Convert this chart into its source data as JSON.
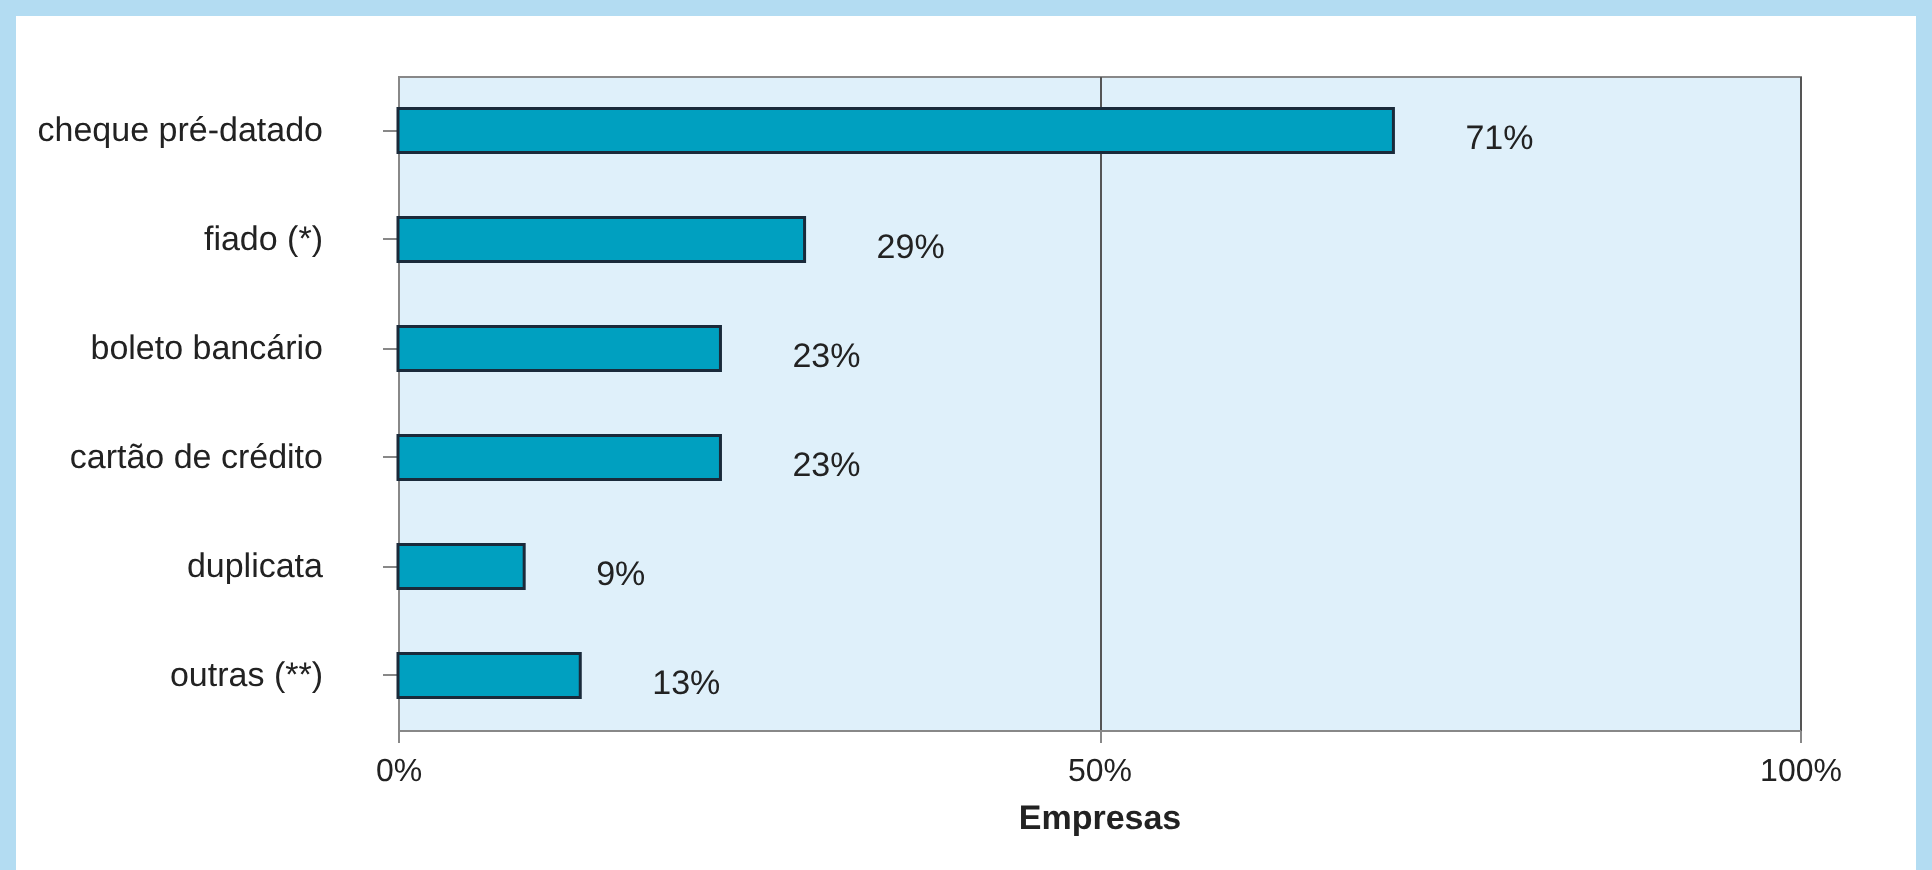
{
  "chart_data": {
    "type": "bar",
    "orientation": "horizontal",
    "categories": [
      "cheque pré-datado",
      "fiado (*)",
      "boleto bancário",
      "cartão de crédito",
      "duplicata",
      "outras (**)"
    ],
    "values": [
      71,
      29,
      23,
      23,
      9,
      13
    ],
    "value_labels": [
      "71%",
      "29%",
      "23%",
      "23%",
      "9%",
      "13%"
    ],
    "color": "#00a0c0",
    "xlabel": "Empresas",
    "xlim": [
      0,
      100
    ],
    "xticks": [
      {
        "value": 0,
        "label": "0%"
      },
      {
        "value": 50,
        "label": "50%"
      },
      {
        "value": 100,
        "label": "100%"
      }
    ],
    "grid": "x"
  }
}
